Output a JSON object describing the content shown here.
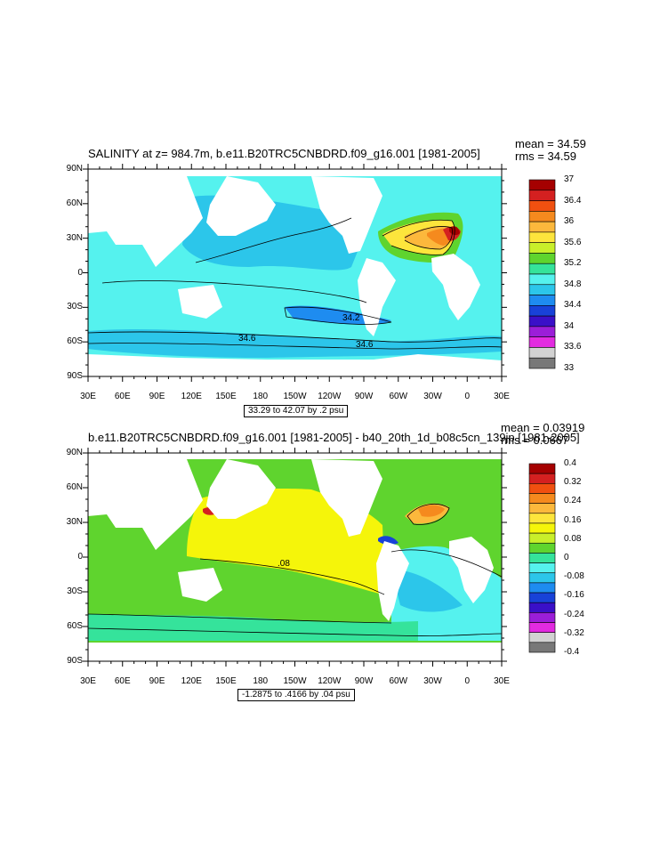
{
  "panels": [
    {
      "title": "SALINITY at z= 984.7m, b.e11.B20TRC5CNBDRD.f09_g16.001 [1981-2005]",
      "mean": "mean = 34.59",
      "rms": "rms = 34.59",
      "range_label": "33.29 to 42.07 by .2 psu",
      "colorbar_labels": [
        "37",
        "36.4",
        "36",
        "35.6",
        "35.2",
        "34.8",
        "34.4",
        "34",
        "33.6",
        "33"
      ],
      "contour_labels": [
        "34.2",
        "34.6",
        "34.6"
      ],
      "colors": [
        "#a50000",
        "#d42020",
        "#f05010",
        "#f58a1e",
        "#fcb83c",
        "#fde53c",
        "#c9ef2a",
        "#5fd42e",
        "#35e39b",
        "#55f2ee",
        "#2cc6ea",
        "#1e8cf0",
        "#1842d8",
        "#3a10c8",
        "#9b1ed8",
        "#e22be0",
        "#d2d2d2",
        "#787878"
      ]
    },
    {
      "title": "b.e11.B20TRC5CNBDRD.f09_g16.001 [1981-2005] - b40_20th_1d_b08c5cn_139jp [1981-2005]",
      "mean": "mean = 0.03919",
      "rms": "rms = 0.0667",
      "range_label": "-1.2875 to .4166 by .04 psu",
      "colorbar_labels": [
        "0.4",
        "0.32",
        "0.24",
        "0.16",
        "0.08",
        "0",
        "-0.08",
        "-0.16",
        "-0.24",
        "-0.32",
        "-0.4"
      ],
      "contour_labels": [
        ".08"
      ],
      "colors": [
        "#a50000",
        "#d42020",
        "#f05010",
        "#f58a1e",
        "#fcb83c",
        "#fde53c",
        "#f5f50a",
        "#c9ef2a",
        "#5fd42e",
        "#35e39b",
        "#55f2ee",
        "#2cc6ea",
        "#1e8cf0",
        "#1842d8",
        "#3a10c8",
        "#9b1ed8",
        "#e22be0",
        "#d2d2d2",
        "#787878"
      ]
    }
  ],
  "axes": {
    "lat_labels": [
      "90N",
      "60N",
      "30N",
      "0",
      "30S",
      "60S",
      "90S"
    ],
    "lon_labels": [
      "30E",
      "60E",
      "90E",
      "120E",
      "150E",
      "180",
      "150W",
      "120W",
      "90W",
      "60W",
      "30W",
      "0",
      "30E"
    ]
  }
}
